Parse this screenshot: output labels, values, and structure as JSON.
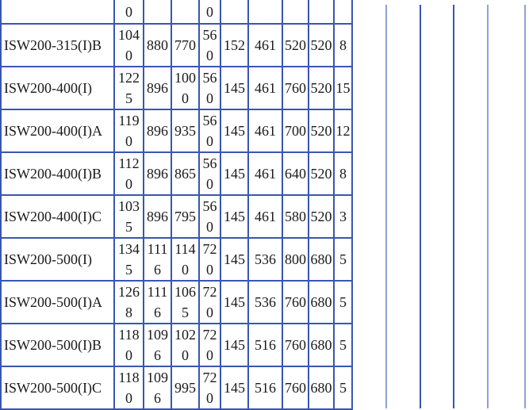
{
  "table": {
    "top_row": [
      "",
      "0",
      "",
      "",
      "0",
      "",
      "",
      "",
      "",
      ""
    ],
    "rows": [
      [
        "ISW200-315(I)B",
        "1040",
        "880",
        "770",
        "560",
        "152",
        "461",
        "520",
        "520",
        "8"
      ],
      [
        "ISW200-400(I)",
        "1225",
        "896",
        "1000",
        "560",
        "145",
        "461",
        "760",
        "520",
        "15"
      ],
      [
        "ISW200-400(I)A",
        "1190",
        "896",
        "935",
        "560",
        "145",
        "461",
        "700",
        "520",
        "12"
      ],
      [
        "ISW200-400(I)B",
        "1120",
        "896",
        "865",
        "560",
        "145",
        "461",
        "640",
        "520",
        "8"
      ],
      [
        "ISW200-400(I)C",
        "1035",
        "896",
        "795",
        "560",
        "145",
        "461",
        "580",
        "520",
        "3"
      ],
      [
        "ISW200-500(I)",
        "1345",
        "1116",
        "1140",
        "720",
        "145",
        "536",
        "800",
        "680",
        "5"
      ],
      [
        "ISW200-500(I)A",
        "1268",
        "1116",
        "1065",
        "720",
        "145",
        "536",
        "760",
        "680",
        "5"
      ],
      [
        "ISW200-500(I)B",
        "1180",
        "1096",
        "1020",
        "720",
        "145",
        "516",
        "760",
        "680",
        "5"
      ],
      [
        "ISW200-500(I)C",
        "1180",
        "1096",
        "995",
        "720",
        "145",
        "516",
        "760",
        "680",
        "5"
      ]
    ]
  },
  "colors": {
    "border": "#3a56b0",
    "border_light": "#8fa0d6",
    "text": "#1a1a1a"
  }
}
